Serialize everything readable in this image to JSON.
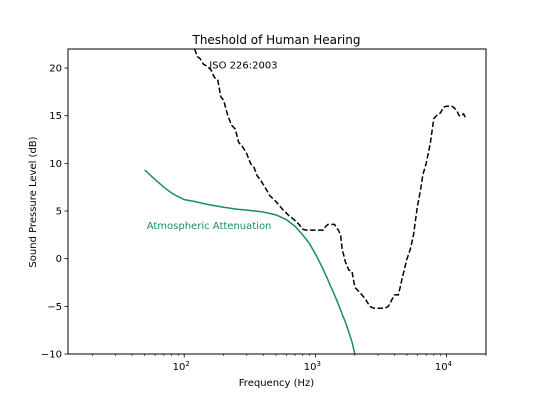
{
  "chart_data": {
    "type": "line",
    "title": "Theshold of Human Hearing",
    "xlabel": "Frequency (Hz)",
    "ylabel": "Sound Pressure Level (dB)",
    "xscale": "log",
    "xlim": [
      13,
      20000
    ],
    "ylim": [
      -10,
      22
    ],
    "xticks": [
      {
        "value": 100,
        "base": "10",
        "exp": "2"
      },
      {
        "value": 1000,
        "base": "10",
        "exp": "3"
      },
      {
        "value": 10000,
        "base": "10",
        "exp": "4"
      }
    ],
    "yticks": [
      {
        "value": -10,
        "label": "−10"
      },
      {
        "value": -5,
        "label": "−5"
      },
      {
        "value": 0,
        "label": "0"
      },
      {
        "value": 5,
        "label": "5"
      },
      {
        "value": 10,
        "label": "10"
      },
      {
        "value": 15,
        "label": "15"
      },
      {
        "value": 20,
        "label": "20"
      }
    ],
    "grid": false,
    "series": [
      {
        "style": "dashed",
        "color": "#000000",
        "x": [
          120,
          126,
          132,
          140,
          150,
          160,
          170,
          180,
          190,
          200,
          215,
          230,
          245,
          260,
          280,
          300,
          320,
          340,
          360,
          380,
          400,
          425,
          450,
          475,
          500,
          530,
          560,
          600,
          630,
          660,
          700,
          750,
          800,
          850,
          900,
          950,
          1000,
          1050,
          1100,
          1150,
          1200,
          1250,
          1300,
          1350,
          1400,
          1450,
          1500,
          1560,
          1600,
          1700,
          1800,
          1900,
          2000,
          2200,
          2400,
          2600,
          2800,
          3000,
          3200,
          3400,
          3600,
          3800,
          4000,
          4300,
          4600,
          5000,
          5300,
          5600,
          6000,
          6300,
          6600,
          7000,
          7500,
          8000,
          8500,
          9000,
          9500,
          10000,
          10500,
          11000,
          11500,
          12000,
          12500,
          13000,
          13500,
          14000
        ],
        "y": [
          22,
          21.2,
          21,
          20.4,
          20.2,
          19.8,
          19,
          18.8,
          17,
          16.6,
          15,
          14,
          13.6,
          12.2,
          11.7,
          11,
          10,
          9.6,
          8.7,
          8.3,
          7.8,
          7.2,
          6.6,
          6.3,
          6,
          5.6,
          5.2,
          4.8,
          4.5,
          4.3,
          4,
          3.6,
          3.1,
          3.0,
          3.0,
          3.0,
          3.0,
          3.0,
          3.0,
          3.0,
          3.4,
          3.6,
          3.6,
          3.6,
          3.6,
          3.2,
          3.0,
          2.4,
          1.0,
          -0.4,
          -1.2,
          -1.3,
          -3.0,
          -3.6,
          -4.2,
          -5.0,
          -5.2,
          -5.2,
          -5.2,
          -5.2,
          -5.0,
          -4.4,
          -3.8,
          -3.8,
          -2.0,
          0.0,
          1.0,
          2.5,
          5.5,
          7.0,
          8.8,
          10.0,
          12.0,
          14.7,
          15.1,
          15.3,
          15.9,
          16.0,
          16.0,
          16.0,
          15.8,
          15.5,
          15.0,
          15.0,
          15.2,
          14.7
        ]
      },
      {
        "style": "solid",
        "color": "#1a8a73",
        "x": [
          50,
          60,
          70,
          80,
          90,
          100,
          120,
          150,
          200,
          250,
          300,
          400,
          500,
          600,
          700,
          800,
          900,
          1000,
          1100,
          1200,
          1300,
          1400,
          1500,
          1600,
          1700,
          1800,
          1900,
          2000
        ],
        "y": [
          9.3,
          8.3,
          7.5,
          6.9,
          6.5,
          6.2,
          6.0,
          5.7,
          5.4,
          5.2,
          5.1,
          4.9,
          4.6,
          4.1,
          3.4,
          2.5,
          1.6,
          0.5,
          -0.6,
          -1.7,
          -2.8,
          -3.8,
          -4.8,
          -5.8,
          -6.7,
          -7.7,
          -8.7,
          -10.0
        ]
      }
    ],
    "annotations": [
      {
        "text": "ISO 226:2003",
        "x": 150,
        "y": 20.3,
        "color": "#000000"
      },
      {
        "text": "Atmospheric Attenuation",
        "x": 50,
        "y": 3.5,
        "color": "#1a8a73"
      }
    ]
  }
}
